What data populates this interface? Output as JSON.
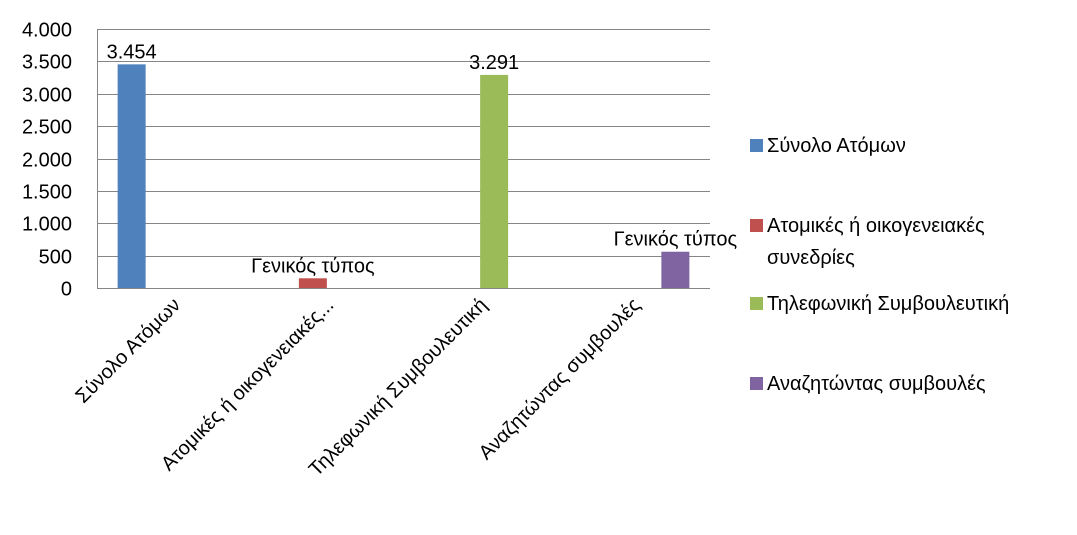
{
  "chart_data": {
    "type": "bar",
    "categories": [
      "Σύνολο Ατόμων",
      "Ατομικές ή οικογενειακές συνεδρίες",
      "Τηλεφωνική Συμβουλευτική",
      "Αναζητώντας συμβουλές"
    ],
    "category_tick_labels": [
      "Σύνολο Ατόμων",
      "Ατομικές ή οικογενειακές...",
      "Τηλεφωνική Συμβουλευτική",
      "Αναζητώντας συμβουλές"
    ],
    "series": [
      {
        "name": "Σύνολο Ατόμων",
        "color": "#4F81BD",
        "values": [
          3454,
          null,
          null,
          null
        ],
        "data_label": "3.454"
      },
      {
        "name": "Ατομικές ή οικογενειακές συνεδρίες",
        "color": "#C0504D",
        "values": [
          null,
          150,
          null,
          null
        ],
        "data_label": "Γενικός τύπος"
      },
      {
        "name": "Τηλεφωνική Συμβουλευτική",
        "color": "#9BBB59",
        "values": [
          null,
          null,
          3291,
          null
        ],
        "data_label": "3.291"
      },
      {
        "name": "Αναζητώντας συμβουλές",
        "color": "#8064A2",
        "values": [
          null,
          null,
          null,
          560
        ],
        "data_label": "Γενικός τύπος"
      }
    ],
    "ylim": [
      0,
      4000
    ],
    "yticks": [
      {
        "value": 0,
        "label": "0"
      },
      {
        "value": 500,
        "label": "500"
      },
      {
        "value": 1000,
        "label": "1.000"
      },
      {
        "value": 1500,
        "label": "1.500"
      },
      {
        "value": 2000,
        "label": "2.000"
      },
      {
        "value": 2500,
        "label": "2.500"
      },
      {
        "value": 3000,
        "label": "3.000"
      },
      {
        "value": 3500,
        "label": "3.500"
      },
      {
        "value": 4000,
        "label": "4.000"
      }
    ],
    "legend_position": "right",
    "legend_entries": [
      {
        "lines": [
          "Σύνολο Ατόμων"
        ],
        "color": "#4F81BD"
      },
      {
        "lines": [
          "Ατομικές ή οικογενειακές",
          "συνεδρίες"
        ],
        "color": "#C0504D"
      },
      {
        "lines": [
          "Τηλεφωνική Συμβουλευτική"
        ],
        "color": "#9BBB59"
      },
      {
        "lines": [
          "Αναζητώντας συμβουλές"
        ],
        "color": "#8064A2"
      }
    ],
    "grid": true,
    "title": "",
    "xlabel": "",
    "ylabel": ""
  }
}
